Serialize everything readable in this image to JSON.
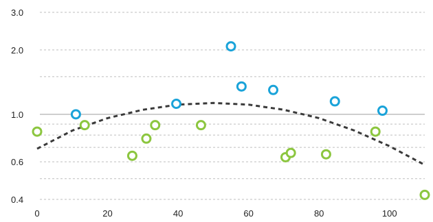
{
  "chart_data": {
    "type": "scatter",
    "title": "",
    "xlabel": "",
    "ylabel": "",
    "xlim": [
      0,
      110
    ],
    "ylim": [
      0.4,
      3.0
    ],
    "y_scale": "log",
    "grid": true,
    "legend": "none",
    "reference_line_y": 1.0,
    "x_ticks": [
      "0",
      "20",
      "40",
      "60",
      "80",
      "100"
    ],
    "y_ticks": [
      "0.4",
      "0.6",
      "1.0",
      "2.0",
      "3.0"
    ],
    "series": [
      {
        "color": "#1aa3d9",
        "points": [
          {
            "x": 11,
            "y": 1.0
          },
          {
            "x": 39.5,
            "y": 1.12
          },
          {
            "x": 55,
            "y": 2.08
          },
          {
            "x": 58,
            "y": 1.35
          },
          {
            "x": 67,
            "y": 1.3
          },
          {
            "x": 84.5,
            "y": 1.15
          },
          {
            "x": 98,
            "y": 1.04
          }
        ]
      },
      {
        "color": "#8cc63f",
        "points": [
          {
            "x": 0,
            "y": 0.83
          },
          {
            "x": 13.5,
            "y": 0.89
          },
          {
            "x": 27,
            "y": 0.64
          },
          {
            "x": 31,
            "y": 0.77
          },
          {
            "x": 33.5,
            "y": 0.89
          },
          {
            "x": 46.5,
            "y": 0.89
          },
          {
            "x": 70.5,
            "y": 0.63
          },
          {
            "x": 72,
            "y": 0.66
          },
          {
            "x": 82,
            "y": 0.65
          },
          {
            "x": 96,
            "y": 0.83
          },
          {
            "x": 110,
            "y": 0.42
          }
        ]
      }
    ],
    "trendline": {
      "style": "dashed",
      "color": "#3a3a3a",
      "points": [
        {
          "x": 0,
          "y": 0.69
        },
        {
          "x": 10,
          "y": 0.84
        },
        {
          "x": 20,
          "y": 0.96
        },
        {
          "x": 30,
          "y": 1.05
        },
        {
          "x": 40,
          "y": 1.11
        },
        {
          "x": 50,
          "y": 1.13
        },
        {
          "x": 60,
          "y": 1.11
        },
        {
          "x": 70,
          "y": 1.05
        },
        {
          "x": 80,
          "y": 0.96
        },
        {
          "x": 90,
          "y": 0.84
        },
        {
          "x": 100,
          "y": 0.71
        },
        {
          "x": 110,
          "y": 0.58
        }
      ]
    }
  }
}
